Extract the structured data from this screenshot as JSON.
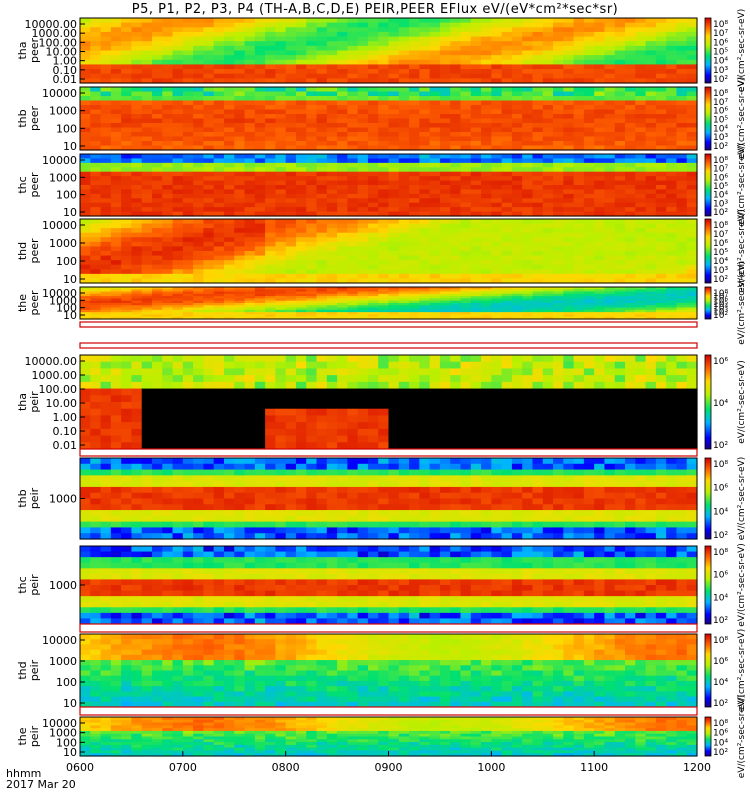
{
  "title": "P5, P1, P2, P3, P4 (TH-A,B,C,D,E) PEIR,PEER EFlux eV/(eV*cm²*sec*sr)",
  "footer": {
    "line1": "hhmm",
    "line2": "2017 Mar 20"
  },
  "chart_data": {
    "type": "heatmap",
    "title": "P5, P1, P2, P3, P4 (TH-A,B,C,D,E) PEIR,PEER EFlux eV/(eV*cm²*sec*sr)",
    "x_ticks": [
      "0600",
      "0700",
      "0800",
      "0900",
      "1000",
      "1100",
      "1200"
    ],
    "colors": {
      "low": "#0000c8",
      "high": "#c80000"
    },
    "panels": [
      {
        "id": "tha-peer",
        "label": "tha\npeer",
        "yticks": [
          "10000.00",
          "1000.00",
          "100.00",
          "10.00",
          "1.00",
          "0.10",
          "0.01"
        ],
        "ylim": [
          0.01,
          30000
        ],
        "cbar_ticks": [
          "10⁸",
          "10⁷",
          "10⁶",
          "10⁵",
          "10⁴",
          "10³",
          "10²"
        ],
        "cbar_label": "eV/(cm²-sec-sr-eV)"
      },
      {
        "id": "thb-peer",
        "label": "thb\npeer",
        "yticks": [
          "10000",
          "1000",
          "100",
          "10"
        ],
        "ylim": [
          5,
          30000
        ],
        "cbar_ticks": [
          "10⁸",
          "10⁷",
          "10⁶",
          "10⁵",
          "10⁴",
          "10³",
          "10²"
        ],
        "cbar_label": "eV/(cm²-sec-sr-eV)"
      },
      {
        "id": "thc-peer",
        "label": "thc\npeer",
        "yticks": [
          "10000",
          "1000",
          "100",
          "10"
        ],
        "ylim": [
          5,
          30000
        ],
        "cbar_ticks": [
          "10⁸",
          "10⁷",
          "10⁶",
          "10⁵",
          "10⁴",
          "10³",
          "10²"
        ],
        "cbar_label": "eV/(cm²-sec-sr-eV)"
      },
      {
        "id": "thd-peer",
        "label": "thd\npeer",
        "yticks": [
          "10000",
          "1000",
          "100",
          "10"
        ],
        "ylim": [
          5,
          30000
        ],
        "cbar_ticks": [
          "10⁸",
          "10⁷",
          "10⁶",
          "10⁵",
          "10⁴",
          "10³",
          "10²"
        ],
        "cbar_label": "eV/(cm²-sec-sr-eV)"
      },
      {
        "id": "the-peer",
        "label": "the\npeer",
        "yticks": [
          "10000",
          "1000",
          "100",
          "10"
        ],
        "ylim": [
          5,
          30000
        ],
        "cbar_ticks": [
          "10⁸",
          "10⁷",
          "10⁶",
          "10⁵",
          "10⁴",
          "10³",
          "10²"
        ],
        "cbar_label": "eV/(cm²-sec-sr-eV)"
      },
      {
        "id": "tha-peir",
        "label": "tha\npeir",
        "yticks": [
          "10000.00",
          "1000.00",
          "100.00",
          "10.00",
          "1.00",
          "0.10",
          "0.01"
        ],
        "ylim": [
          0.01,
          30000
        ],
        "cbar_ticks": [
          "10⁶",
          "10⁴",
          "10²"
        ],
        "cbar_label": "eV/(cm²-sec-sr-eV)"
      },
      {
        "id": "thb-peir",
        "label": "thb\npeir",
        "yticks": [
          "1000"
        ],
        "ylim": [
          30,
          30000
        ],
        "cbar_ticks": [
          "10⁸",
          "10⁶",
          "10⁴",
          "10²"
        ],
        "cbar_label": "eV/(cm²-sec-sr-eV)"
      },
      {
        "id": "thc-peir",
        "label": "thc\npeir",
        "yticks": [
          "1000"
        ],
        "ylim": [
          30,
          30000
        ],
        "cbar_ticks": [
          "10⁸",
          "10⁶",
          "10⁴",
          "10²"
        ],
        "cbar_label": "eV/(cm²-sec-sr-eV)"
      },
      {
        "id": "thd-peir",
        "label": "thd\npeir",
        "yticks": [
          "10000",
          "1000",
          "100",
          "10"
        ],
        "ylim": [
          5,
          30000
        ],
        "cbar_ticks": [
          "10⁸",
          "10⁶",
          "10⁴",
          "10²"
        ],
        "cbar_label": "eV/(cm²-sec-sr-eV)"
      },
      {
        "id": "the-peir",
        "label": "the\npeir",
        "yticks": [
          "10000",
          "1000",
          "100",
          "10"
        ],
        "ylim": [
          5,
          30000
        ],
        "cbar_ticks": [
          "10⁸",
          "10⁶",
          "10⁴",
          "10²"
        ],
        "cbar_label": "eV/(cm²-sec-sr-eV)"
      }
    ]
  }
}
